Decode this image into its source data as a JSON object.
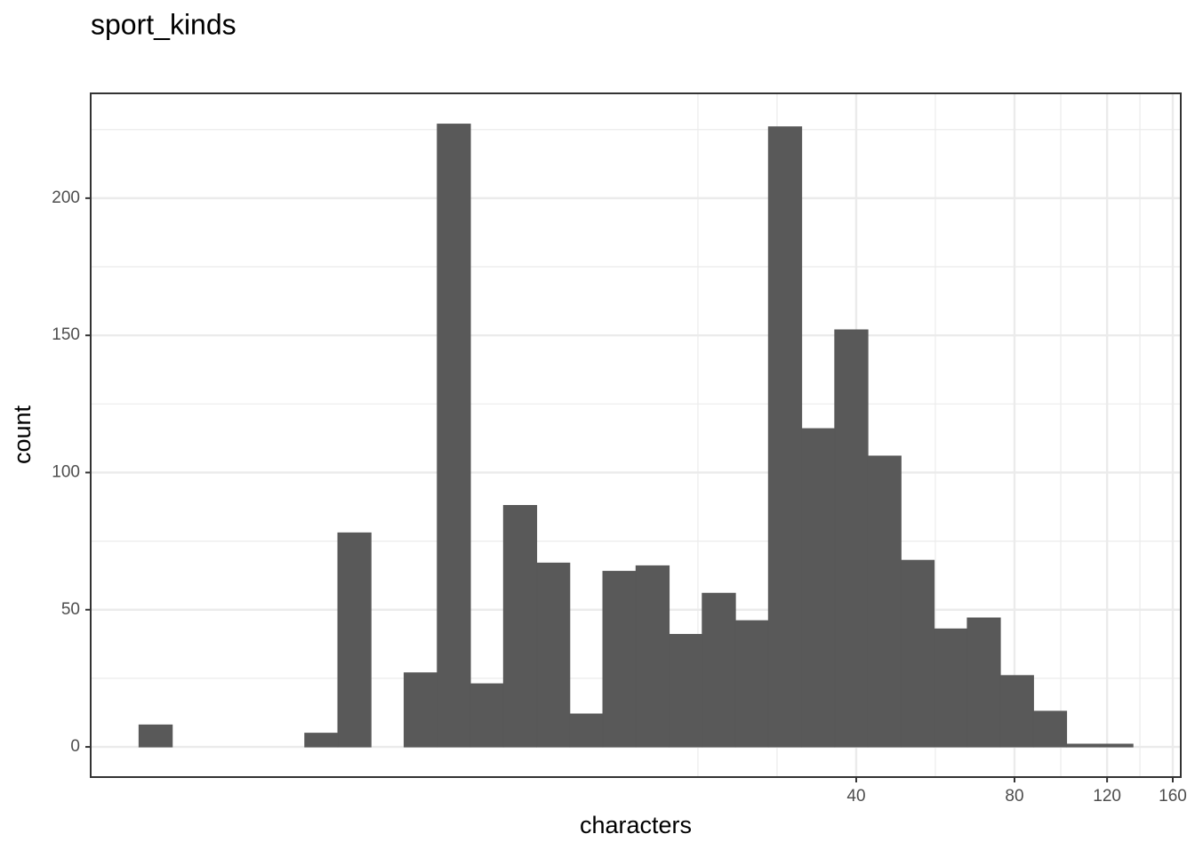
{
  "chart_data": {
    "type": "histogram",
    "title": "sport_kinds",
    "x_label": "characters",
    "y_label": "count",
    "x_scale": "log",
    "bins": [
      1.73,
      2.001,
      2.313,
      2.674,
      3.092,
      3.575,
      4.133,
      4.778,
      5.524,
      6.387,
      7.384,
      8.537,
      9.87,
      11.41,
      13.19,
      15.25,
      17.63,
      20.38,
      23.57,
      27.24,
      31.5,
      36.41,
      42.1,
      48.67,
      56.27,
      65.06,
      75.2,
      86.96,
      100.5,
      116.2,
      134.4
    ],
    "counts": [
      8,
      0,
      0,
      0,
      0,
      5,
      78,
      0,
      27,
      227,
      23,
      88,
      67,
      12,
      64,
      66,
      41,
      56,
      46,
      226,
      116,
      152,
      106,
      68,
      43,
      47,
      26,
      13,
      1,
      1
    ],
    "color": "#595959",
    "xlim": [
      1.4,
      165.7
    ],
    "xticks": [
      40,
      80,
      120,
      160
    ],
    "x_minor_grid": [
      20,
      28.28,
      56.57,
      97.98,
      138.56
    ],
    "ylim": [
      -11.0,
      238.2
    ],
    "yticks": [
      0,
      50,
      100,
      150,
      200
    ],
    "y_minor_grid": [
      25,
      75,
      125,
      175,
      225
    ],
    "grid": true
  }
}
